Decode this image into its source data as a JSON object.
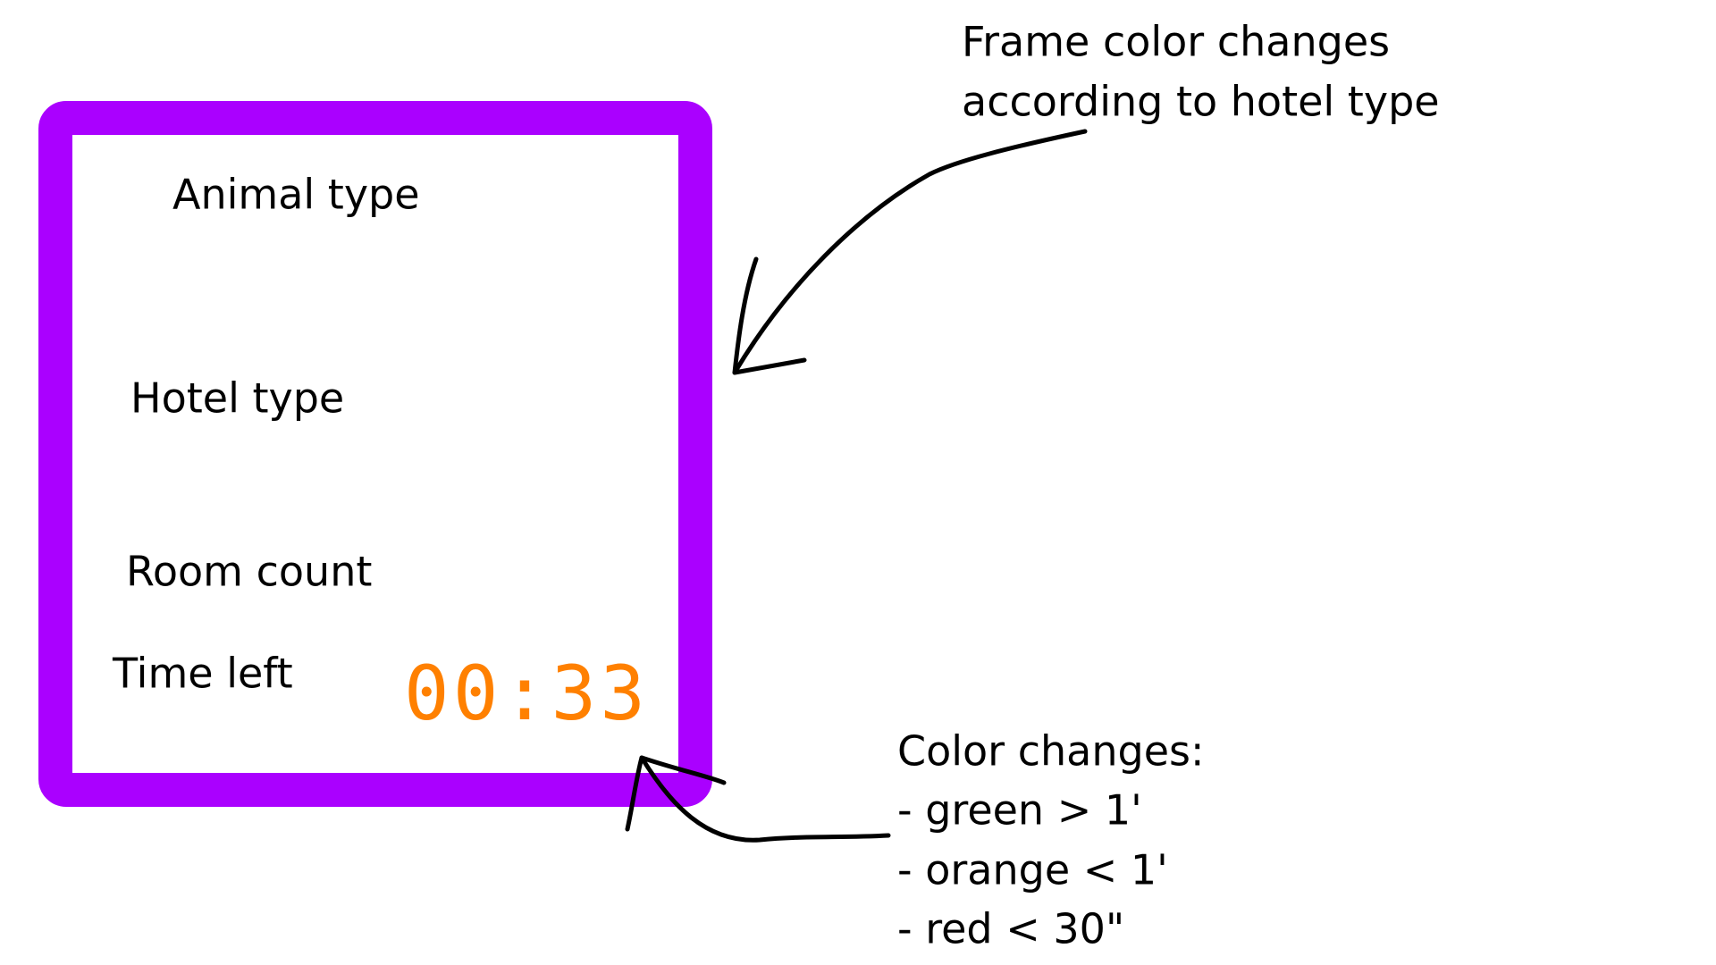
{
  "card": {
    "labels": [
      "Animal type",
      "Hotel type",
      "Room count",
      "Time left"
    ],
    "timer": "00:33"
  },
  "annotations": {
    "frame": [
      "Frame color changes",
      "according to hotel type"
    ],
    "timer": [
      "Color changes:",
      "- green > 1'",
      "- orange < 1'",
      "- red < 30\""
    ]
  }
}
